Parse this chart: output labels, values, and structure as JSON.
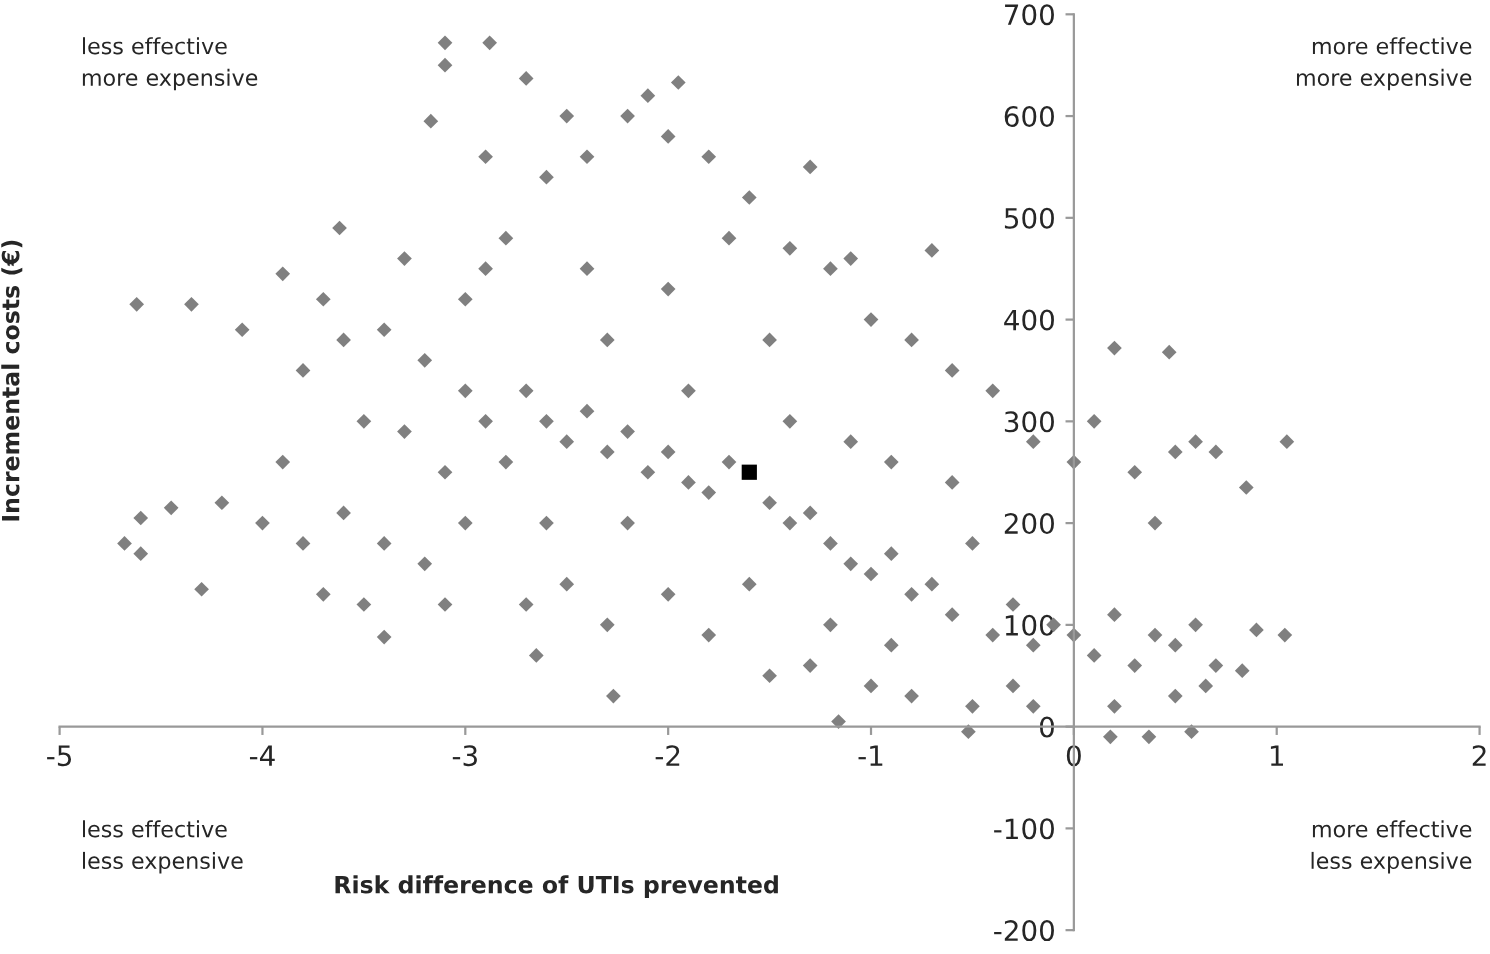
{
  "chart_data": {
    "type": "scatter",
    "xlabel": "Risk difference of UTIs prevented",
    "ylabel": "Incremental costs (€)",
    "xlim": [
      -5,
      2
    ],
    "xticks": [
      -5,
      -4,
      -3,
      -2,
      -1,
      0,
      1,
      2
    ],
    "ylim": [
      -200,
      700
    ],
    "yticks": [
      -200,
      -100,
      0,
      100,
      200,
      300,
      400,
      500,
      600,
      700
    ],
    "grid": false,
    "legend": false,
    "annotations": [
      "less effective\nmore expensive",
      "more effective\nmore expensive",
      "less effective\nless expensive",
      "more effective\nless expensive"
    ],
    "series": [
      {
        "color": "#808080",
        "marker": "diamond",
        "x": [
          -4.62,
          -4.35,
          -4.68,
          -4.6,
          -4.6,
          -4.45,
          -4.3,
          -4.1,
          -3.9,
          -3.62,
          -3.4,
          -3.1,
          -2.88,
          -3.1,
          -3.17,
          -2.7,
          -1.95,
          -2.27,
          -2.65,
          -1.16,
          -0.7,
          -0.52,
          0.18,
          0.37,
          0.58,
          1.05,
          1.04,
          0.9,
          0.83,
          0.85,
          0.47,
          0.2,
          -4.0,
          -3.8,
          -3.6,
          -3.4,
          -3.2,
          -3.0,
          -3.8,
          -3.6,
          -3.4,
          -3.2,
          -3.0,
          -3.9,
          -3.5,
          -3.3,
          -3.1,
          -2.9,
          -2.8,
          -2.7,
          -2.6,
          -2.5,
          -2.4,
          -2.3,
          -2.2,
          -2.1,
          -2.0,
          -1.9,
          -1.8,
          -1.7,
          -1.5,
          -1.4,
          -1.3,
          -1.2,
          -1.1,
          -1.0,
          -0.9,
          -0.8,
          -0.7,
          -0.6,
          -0.5,
          -0.4,
          -0.3,
          -0.2,
          -0.1,
          0.0,
          0.1,
          0.2,
          0.3,
          0.4,
          0.5,
          0.6,
          0.7,
          -0.2,
          0.0,
          0.1,
          0.3,
          0.5,
          0.6,
          0.7,
          0.4,
          -0.4,
          -0.6,
          -0.8,
          -1.0,
          -1.2,
          -1.4,
          -1.6,
          -1.8,
          -2.0,
          -2.2,
          -2.4,
          -2.6,
          -2.8,
          -2.4,
          -2.0,
          -1.7,
          -1.5,
          -2.0,
          -2.3,
          -2.5,
          -2.7,
          -1.8,
          -1.5,
          -1.3,
          -1.0,
          -0.8,
          -0.5,
          -0.3,
          -1.6,
          -1.2,
          -0.9,
          -1.4,
          -1.1,
          -0.9,
          -0.6,
          -3.0,
          -2.9,
          -3.7,
          -3.5,
          -4.2,
          -3.1,
          -2.2,
          -2.6,
          -1.9,
          -2.3,
          -1.3,
          -1.1,
          -0.2,
          0.2,
          0.5,
          0.65,
          -3.3,
          -3.7,
          -2.9,
          -2.5,
          -2.1
        ],
        "values": [
          415,
          415,
          180,
          205,
          170,
          215,
          135,
          390,
          445,
          490,
          88,
          672,
          672,
          650,
          595,
          637,
          633,
          30,
          70,
          5,
          468,
          -5,
          -10,
          -10,
          -5,
          280,
          90,
          95,
          55,
          235,
          368,
          372,
          200,
          180,
          210,
          180,
          160,
          200,
          350,
          380,
          390,
          360,
          330,
          260,
          300,
          290,
          250,
          300,
          260,
          330,
          300,
          280,
          310,
          270,
          290,
          250,
          270,
          240,
          230,
          260,
          220,
          200,
          210,
          180,
          160,
          150,
          170,
          130,
          140,
          110,
          180,
          90,
          120,
          80,
          100,
          90,
          70,
          110,
          60,
          90,
          80,
          100,
          60,
          280,
          260,
          300,
          250,
          270,
          280,
          270,
          200,
          330,
          350,
          380,
          400,
          450,
          470,
          520,
          560,
          580,
          600,
          560,
          540,
          480,
          450,
          430,
          480,
          380,
          130,
          100,
          140,
          120,
          90,
          50,
          60,
          40,
          30,
          20,
          40,
          140,
          100,
          80,
          300,
          280,
          260,
          240,
          420,
          450,
          130,
          120,
          220,
          120,
          200,
          200,
          330,
          380,
          550,
          460,
          20,
          20,
          30,
          40,
          460,
          420,
          560,
          600,
          620
        ]
      },
      {
        "color": "#000000",
        "marker": "square",
        "x": [
          -1.6
        ],
        "values": [
          250
        ]
      }
    ]
  }
}
